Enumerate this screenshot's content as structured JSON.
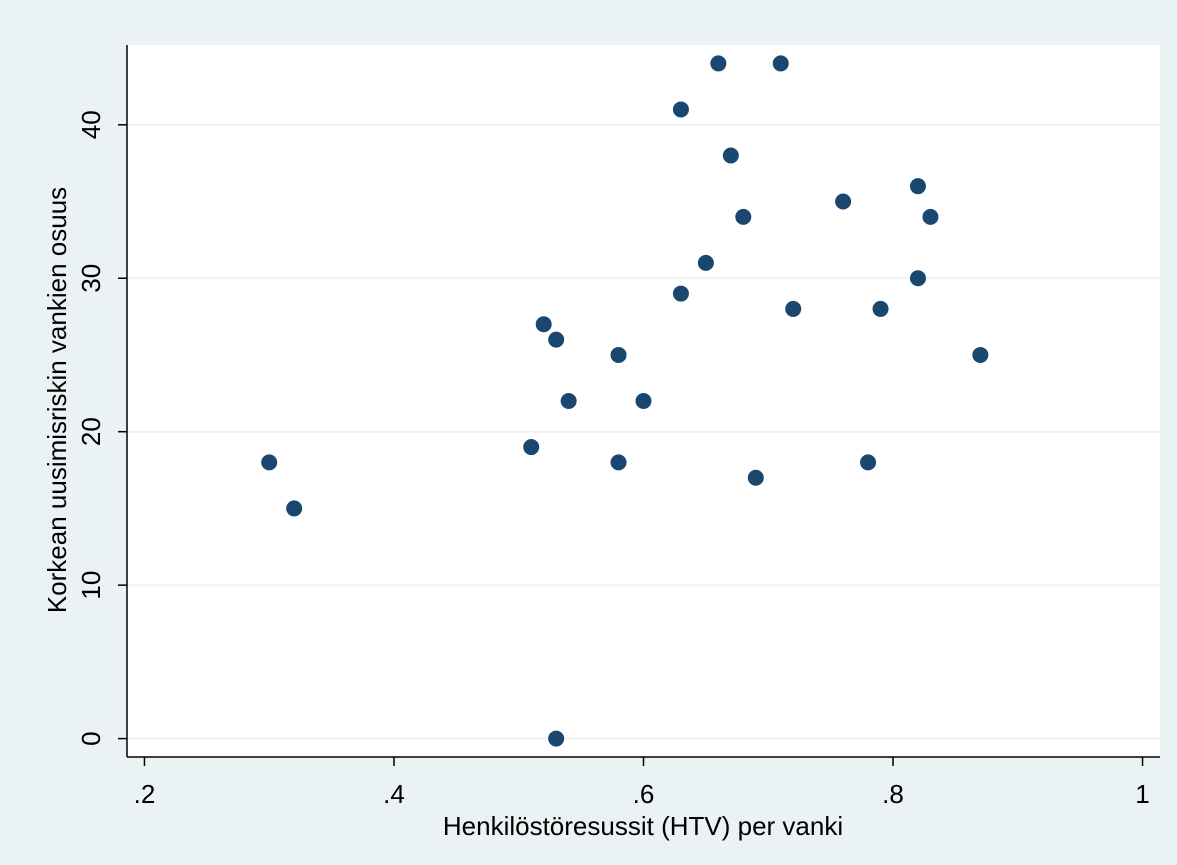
{
  "chart_data": {
    "type": "scatter",
    "x_label": "Henkilöstöresussit (HTV) per vanki",
    "y_label": "Korkean uusimisriskin vankien osuus",
    "series": [
      {
        "color": "#1a476f",
        "x": [
          0.3,
          0.32,
          0.51,
          0.52,
          0.53,
          0.53,
          0.54,
          0.58,
          0.58,
          0.6,
          0.63,
          0.63,
          0.65,
          0.66,
          0.67,
          0.68,
          0.69,
          0.71,
          0.72,
          0.76,
          0.78,
          0.79,
          0.82,
          0.82,
          0.83,
          0.87
        ],
        "values": [
          18,
          15,
          19,
          27,
          26,
          0,
          22,
          25,
          18,
          22,
          41,
          29,
          31,
          44,
          38,
          34,
          17,
          44,
          28,
          35,
          18,
          28,
          36,
          30,
          34,
          25
        ]
      }
    ],
    "xlim": [
      0.186,
      1.014
    ],
    "ylim": [
      -1.2,
      45.2
    ],
    "xticks": [
      {
        "value": 0.2,
        "label": ".2"
      },
      {
        "value": 0.4,
        "label": ".4"
      },
      {
        "value": 0.6,
        "label": ".6"
      },
      {
        "value": 0.8,
        "label": ".8"
      },
      1
    ],
    "yticks": [
      0,
      10,
      20,
      30,
      40
    ],
    "grid": true
  }
}
